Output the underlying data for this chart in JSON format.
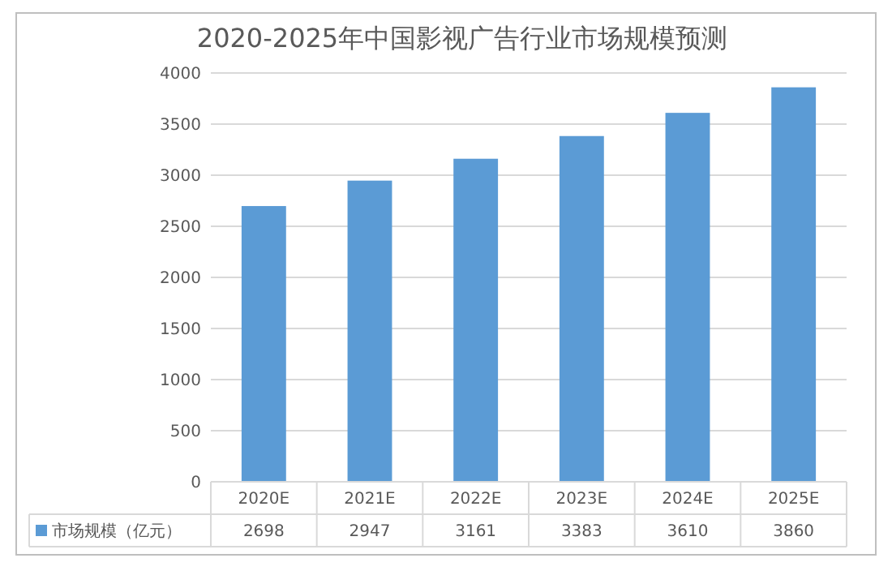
{
  "chart_data": {
    "type": "bar",
    "title": "2020-2025年中国影视广告行业市场规模预测",
    "categories": [
      "2020E",
      "2021E",
      "2022E",
      "2023E",
      "2024E",
      "2025E"
    ],
    "series": [
      {
        "name": "市场规模（亿元）",
        "color": "#5b9bd5",
        "values": [
          2698,
          2947,
          3161,
          3383,
          3610,
          3860
        ]
      }
    ],
    "ylim": [
      0,
      4000
    ],
    "yticks": [
      0,
      500,
      1000,
      1500,
      2000,
      2500,
      3000,
      3500,
      4000
    ],
    "grid": "y",
    "legend": "bottom",
    "data_labels": true
  }
}
